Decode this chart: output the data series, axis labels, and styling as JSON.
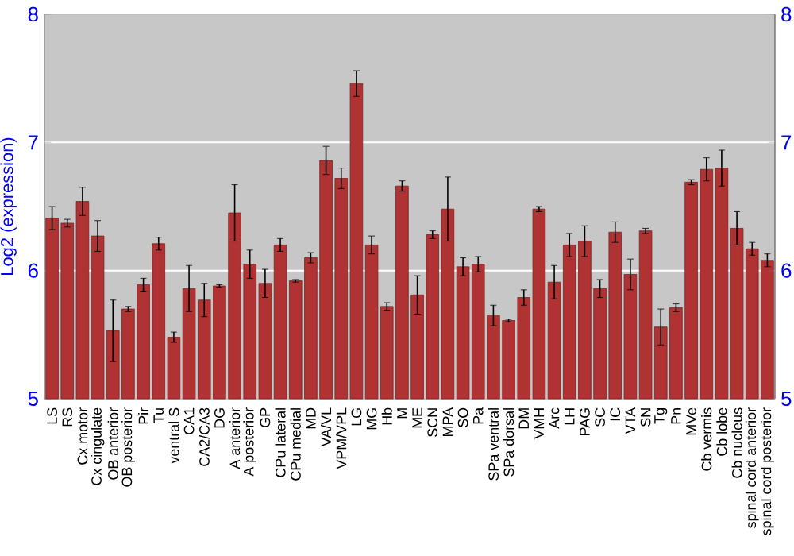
{
  "chart_data": {
    "type": "bar",
    "ylabel": "Log2 (expression)",
    "categories": [
      "LS",
      "RS",
      "Cx motor",
      "Cx cingulate",
      "OB anterior",
      "OB posterior",
      "Pir",
      "Tu",
      "ventral S",
      "CA1",
      "CA2/CA3",
      "DG",
      "A anterior",
      "A posterior",
      "GP",
      "CPu lateral",
      "CPu medial",
      "MD",
      "VA/VL",
      "VPM/VPL",
      "LG",
      "MG",
      "Hb",
      "M",
      "ME",
      "SCN",
      "MPA",
      "SO",
      "Pa",
      "SPa ventral",
      "SPa dorsal",
      "DM",
      "VMH",
      "Arc",
      "LH",
      "PAG",
      "SC",
      "IC",
      "VTA",
      "SN",
      "Tg",
      "Pn",
      "MVe",
      "Cb vermis",
      "Cb lobe",
      "Cb nucleus",
      "spinal cord anterior",
      "spinal cord posterior"
    ],
    "values": [
      6.41,
      6.37,
      6.54,
      6.27,
      5.53,
      5.7,
      5.89,
      6.21,
      5.48,
      5.86,
      5.77,
      5.88,
      6.45,
      6.05,
      5.9,
      6.2,
      5.92,
      6.1,
      6.86,
      6.72,
      7.46,
      6.2,
      5.72,
      6.66,
      5.81,
      6.28,
      6.48,
      6.03,
      6.05,
      5.65,
      5.61,
      5.79,
      6.48,
      5.91,
      6.2,
      6.23,
      5.86,
      6.3,
      5.97,
      6.31,
      5.56,
      5.71,
      6.69,
      6.79,
      6.8,
      6.33,
      6.17,
      6.08
    ],
    "errors": [
      0.09,
      0.03,
      0.11,
      0.12,
      0.24,
      0.02,
      0.05,
      0.05,
      0.04,
      0.18,
      0.13,
      0.01,
      0.22,
      0.11,
      0.11,
      0.05,
      0.01,
      0.04,
      0.11,
      0.08,
      0.1,
      0.07,
      0.03,
      0.04,
      0.15,
      0.03,
      0.25,
      0.07,
      0.06,
      0.08,
      0.01,
      0.06,
      0.02,
      0.13,
      0.09,
      0.12,
      0.07,
      0.08,
      0.12,
      0.02,
      0.14,
      0.03,
      0.02,
      0.09,
      0.14,
      0.13,
      0.05,
      0.05
    ],
    "color": "#b03232",
    "ylim": [
      5,
      8
    ],
    "yticks": [
      5,
      6,
      7,
      8
    ],
    "y2lim": [
      5,
      8
    ],
    "y2ticks": [
      5,
      6,
      7,
      8
    ],
    "grid": "y"
  }
}
